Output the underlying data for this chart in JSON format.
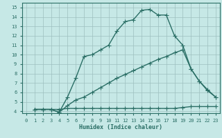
{
  "xlabel": "Humidex (Indice chaleur)",
  "xlim": [
    -0.5,
    23.5
  ],
  "ylim": [
    3.8,
    15.5
  ],
  "xticks": [
    0,
    1,
    2,
    3,
    4,
    5,
    6,
    7,
    8,
    9,
    10,
    11,
    12,
    13,
    14,
    15,
    16,
    17,
    18,
    19,
    20,
    21,
    22,
    23
  ],
  "yticks": [
    4,
    5,
    6,
    7,
    8,
    9,
    10,
    11,
    12,
    13,
    14,
    15
  ],
  "background_color": "#c6e8e6",
  "grid_color": "#9dbfbf",
  "line_color": "#2a6e65",
  "line1_x": [
    1,
    2,
    3,
    4,
    5,
    6,
    7,
    8,
    9,
    10,
    11,
    12,
    13,
    14,
    15,
    16,
    17,
    18,
    19,
    20,
    21,
    22,
    23
  ],
  "line1_y": [
    4.2,
    4.2,
    4.2,
    4.2,
    4.3,
    4.3,
    4.3,
    4.3,
    4.3,
    4.3,
    4.3,
    4.3,
    4.3,
    4.3,
    4.3,
    4.3,
    4.3,
    4.3,
    4.4,
    4.5,
    4.5,
    4.5,
    4.5
  ],
  "line2_x": [
    1,
    2,
    3,
    4,
    5,
    6,
    7,
    8,
    9,
    10,
    11,
    12,
    13,
    14,
    15,
    16,
    17,
    18,
    19,
    20,
    21,
    22,
    23
  ],
  "line2_y": [
    4.2,
    4.2,
    4.2,
    3.9,
    4.6,
    5.2,
    5.5,
    6.0,
    6.5,
    7.0,
    7.5,
    7.9,
    8.3,
    8.7,
    9.1,
    9.5,
    9.8,
    10.2,
    10.5,
    8.5,
    7.2,
    6.2,
    5.5
  ],
  "line3_x": [
    1,
    2,
    3,
    4,
    5,
    6,
    7,
    8,
    9,
    10,
    11,
    12,
    13,
    14,
    15,
    16,
    17,
    18,
    19,
    20,
    21,
    22,
    23
  ],
  "line3_y": [
    4.2,
    4.2,
    4.2,
    3.9,
    5.5,
    7.5,
    9.8,
    10.0,
    10.5,
    11.0,
    12.5,
    13.5,
    13.7,
    14.7,
    14.8,
    14.2,
    14.2,
    12.0,
    11.0,
    8.5,
    7.2,
    6.3,
    5.5
  ],
  "marker": "+",
  "markersize": 4,
  "linewidth": 1.0
}
